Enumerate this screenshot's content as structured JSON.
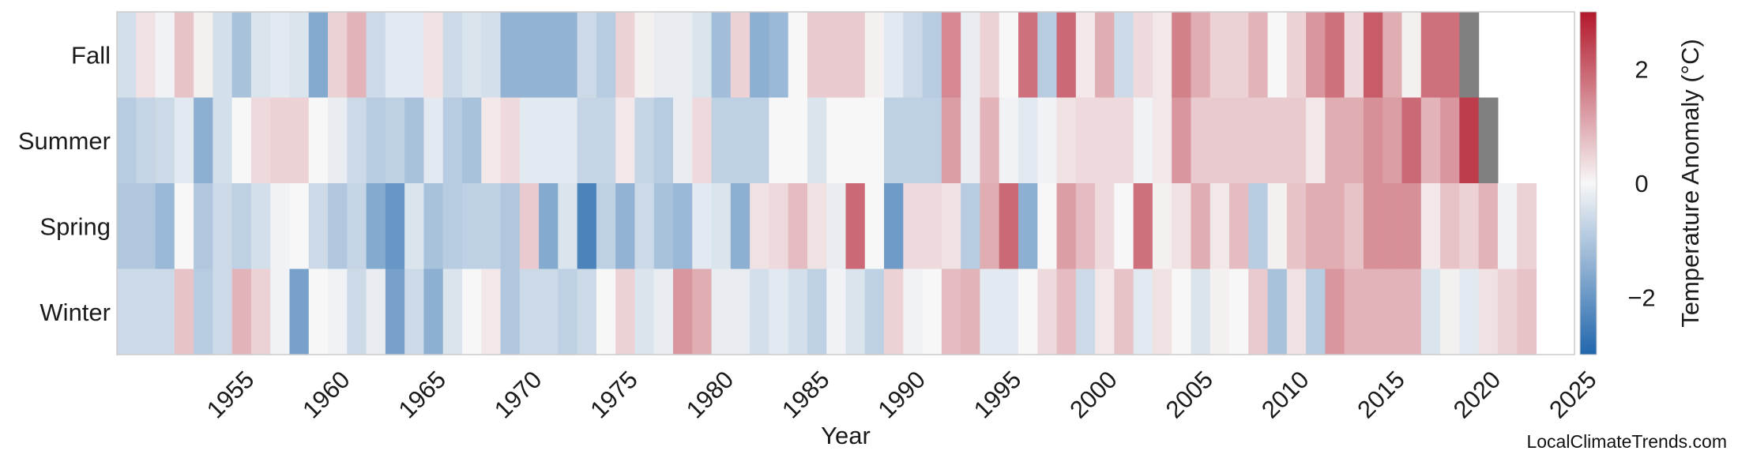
{
  "chart_data": {
    "type": "heatmap",
    "title": "",
    "xlabel": "Year",
    "colorbar_label": "Temperature Anomaly (°C)",
    "credit": "LocalClimateTrends.com",
    "x_start": 1950,
    "x_end": 2025,
    "xlim": [
      1950,
      2025
    ],
    "x_ticks": [
      "1955",
      "1960",
      "1965",
      "1970",
      "1975",
      "1980",
      "1985",
      "1990",
      "1995",
      "2000",
      "2005",
      "2010",
      "2015",
      "2020",
      "2025"
    ],
    "rows": [
      "Fall",
      "Summer",
      "Spring",
      "Winter"
    ],
    "colorbar_range": [
      -3,
      3
    ],
    "colorbar_ticks": [
      "-2",
      "0",
      "2"
    ],
    "colormap": {
      "neg": "#2166ac",
      "mid": "#f7f7f7",
      "pos": "#b2182b"
    },
    "missing_color": "#808080",
    "values": {
      "Fall": [
        -0.5,
        0.3,
        -0.1,
        0.7,
        0.1,
        -0.5,
        -1.1,
        -0.4,
        -0.3,
        -0.4,
        -1.6,
        0.5,
        0.9,
        -0.6,
        -0.3,
        -0.3,
        0.3,
        -0.6,
        -0.4,
        -0.5,
        -1.4,
        -1.4,
        -1.4,
        -1.4,
        -0.6,
        -0.9,
        0.5,
        0.1,
        -0.2,
        -0.2,
        -0.4,
        -1.2,
        0.5,
        -1.5,
        -1.3,
        0.0,
        0.6,
        0.6,
        0.6,
        0.1,
        -0.3,
        -0.6,
        -0.9,
        1.5,
        -0.2,
        0.5,
        0.0,
        1.8,
        -0.9,
        1.9,
        0.2,
        1.0,
        -0.6,
        0.4,
        0.2,
        1.6,
        1.0,
        0.5,
        0.5,
        0.9,
        0.0,
        0.5,
        1.3,
        1.8,
        0.4,
        2.1,
        1.0,
        0.1,
        1.8,
        1.8,
        null
      ],
      "Summer": [
        -0.9,
        -0.7,
        -0.6,
        -0.3,
        -1.5,
        -0.5,
        0.0,
        0.4,
        0.5,
        0.5,
        0.0,
        -0.2,
        -0.6,
        -0.9,
        -0.8,
        -1.1,
        -0.3,
        -0.9,
        -1.1,
        0.2,
        0.4,
        -0.3,
        -0.3,
        -0.3,
        -0.7,
        -0.7,
        0.2,
        -0.7,
        -0.9,
        -0.2,
        0.4,
        -0.8,
        -0.8,
        -0.8,
        0.0,
        0.0,
        -0.4,
        0.0,
        0.0,
        0.0,
        -0.8,
        -0.8,
        -0.8,
        1.2,
        -0.2,
        0.9,
        -0.1,
        -0.3,
        -0.1,
        0.3,
        0.4,
        0.4,
        0.4,
        -0.1,
        0.2,
        1.3,
        0.6,
        0.6,
        0.6,
        0.6,
        0.6,
        0.6,
        0.2,
        1.0,
        1.0,
        1.4,
        1.2,
        1.9,
        0.9,
        1.3,
        2.5,
        null
      ],
      "Spring": [
        -1.0,
        -1.0,
        -1.3,
        0.0,
        -1.0,
        -0.6,
        -0.8,
        -0.5,
        -0.1,
        0.0,
        -0.6,
        -1.0,
        -0.7,
        -1.6,
        -2.0,
        -0.4,
        -1.1,
        -0.9,
        -0.8,
        -0.8,
        -1.0,
        0.6,
        -1.6,
        -0.4,
        -2.4,
        -0.8,
        -1.4,
        -0.6,
        -1.1,
        -1.3,
        -0.3,
        -0.4,
        -1.5,
        0.3,
        0.4,
        0.8,
        0.3,
        -0.2,
        1.9,
        0.0,
        -1.9,
        0.4,
        0.4,
        0.3,
        -0.9,
        1.0,
        1.9,
        -1.5,
        0.0,
        1.2,
        0.8,
        0.4,
        0.0,
        1.8,
        0.1,
        0.3,
        1.0,
        0.2,
        0.8,
        -0.9,
        0.1,
        0.7,
        1.0,
        1.0,
        0.7,
        1.4,
        1.4,
        1.4,
        0.2,
        0.7,
        0.5,
        0.9,
        -0.1,
        0.5
      ],
      "Winter": [
        -0.6,
        -0.6,
        -0.6,
        0.7,
        -0.9,
        -0.6,
        0.9,
        0.5,
        -0.1,
        -1.8,
        0.0,
        -0.1,
        -0.6,
        -0.2,
        -1.8,
        -0.6,
        -1.5,
        -0.4,
        0.0,
        0.2,
        -1.0,
        -0.6,
        -0.6,
        -0.8,
        -0.6,
        0.0,
        0.5,
        -0.4,
        -0.2,
        1.3,
        1.0,
        -0.2,
        -0.2,
        -0.5,
        -0.3,
        -0.5,
        -0.8,
        -0.1,
        -0.4,
        -0.8,
        0.5,
        -0.1,
        0.0,
        0.8,
        0.9,
        -0.3,
        -0.3,
        0.0,
        0.4,
        0.8,
        -0.6,
        0.2,
        0.7,
        -0.3,
        0.3,
        0.0,
        -0.4,
        0.1,
        0.0,
        0.6,
        -1.1,
        0.3,
        -0.9,
        1.3,
        0.9,
        0.9,
        0.9,
        0.9,
        -0.4,
        0.1,
        -0.3,
        0.3,
        0.5,
        0.7
      ]
    }
  }
}
